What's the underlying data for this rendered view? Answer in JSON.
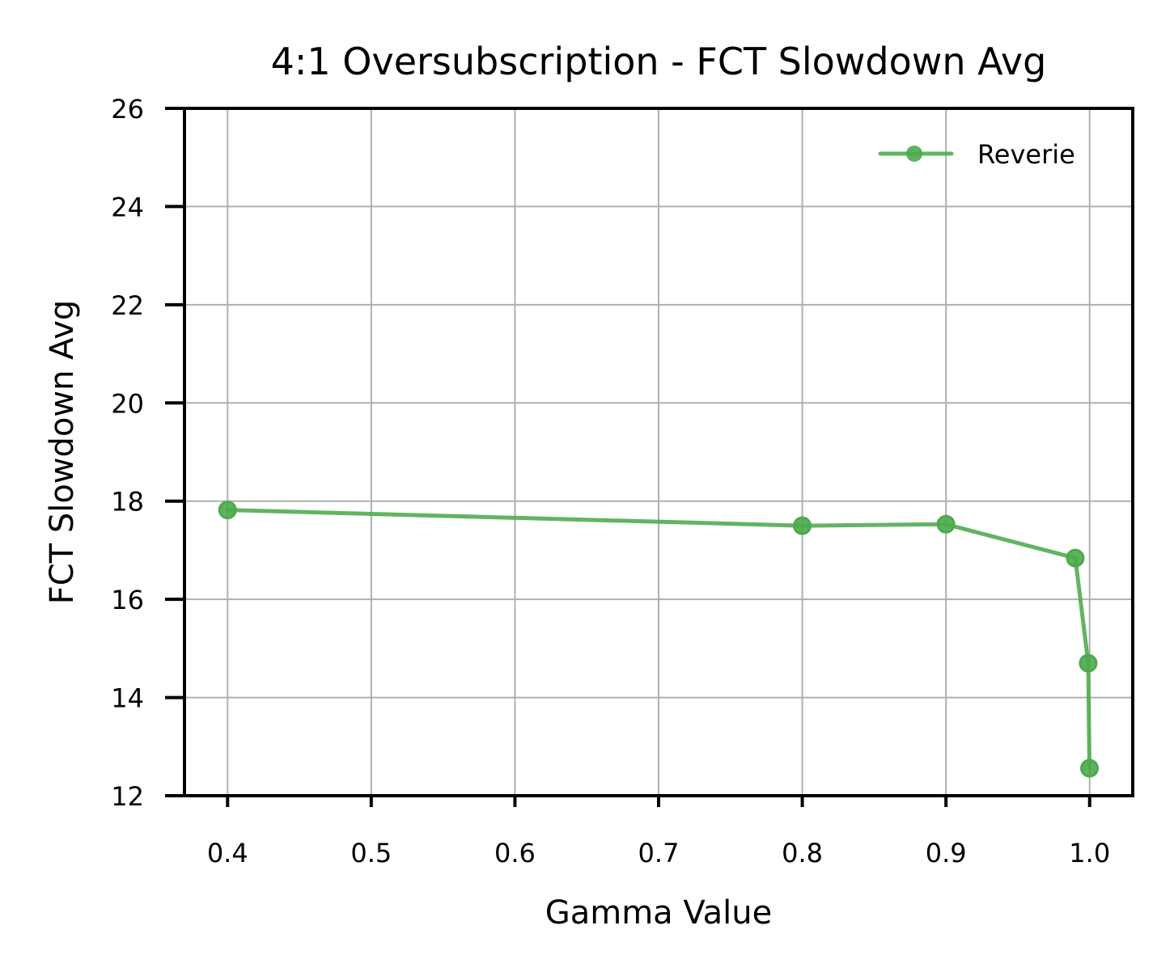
{
  "chart_data": {
    "type": "line",
    "title": "4:1 Oversubscription - FCT Slowdown Avg",
    "xlabel": "Gamma Value",
    "ylabel": "FCT Slowdown Avg",
    "xlim": [
      0.37,
      1.03
    ],
    "ylim": [
      12,
      26
    ],
    "xticks": [
      0.4,
      0.5,
      0.6,
      0.7,
      0.8,
      0.9,
      1.0
    ],
    "xtick_labels": [
      "0.4",
      "0.5",
      "0.6",
      "0.7",
      "0.8",
      "0.9",
      "1.0"
    ],
    "yticks": [
      12,
      14,
      16,
      18,
      20,
      22,
      24,
      26
    ],
    "ytick_labels": [
      "12",
      "14",
      "16",
      "18",
      "20",
      "22",
      "24",
      "26"
    ],
    "grid": true,
    "legend_position": "top-right",
    "series": [
      {
        "name": "Reverie",
        "color": "#4caa4c",
        "marker": "circle",
        "x": [
          0.4,
          0.8,
          0.9,
          0.99,
          0.999,
          0.9999
        ],
        "y": [
          17.82,
          17.5,
          17.53,
          16.84,
          14.7,
          12.56
        ]
      }
    ]
  }
}
